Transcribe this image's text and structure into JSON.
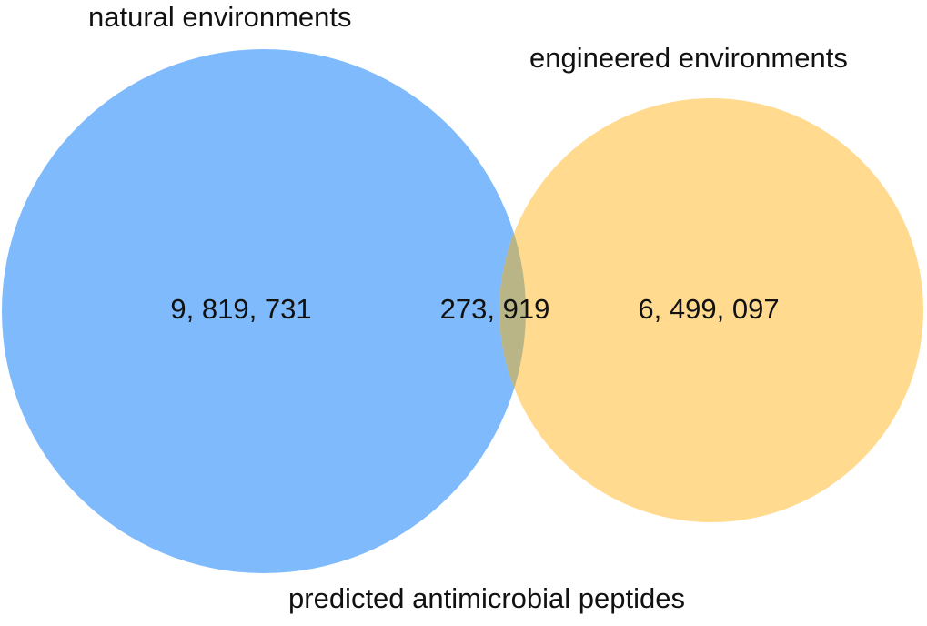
{
  "diagram": {
    "type": "venn",
    "caption": "predicted antimicrobial peptides",
    "sets": [
      {
        "id": "natural",
        "label": "natural environments",
        "color": "#7FBAFC"
      },
      {
        "id": "engineered",
        "label": "engineered environments",
        "color": "#FFDA8F"
      }
    ],
    "overlap_color": "#B9B586",
    "regions": {
      "natural_only": "9, 819, 731",
      "intersection": "273, 919",
      "engineered_only": "6, 499, 097"
    }
  }
}
